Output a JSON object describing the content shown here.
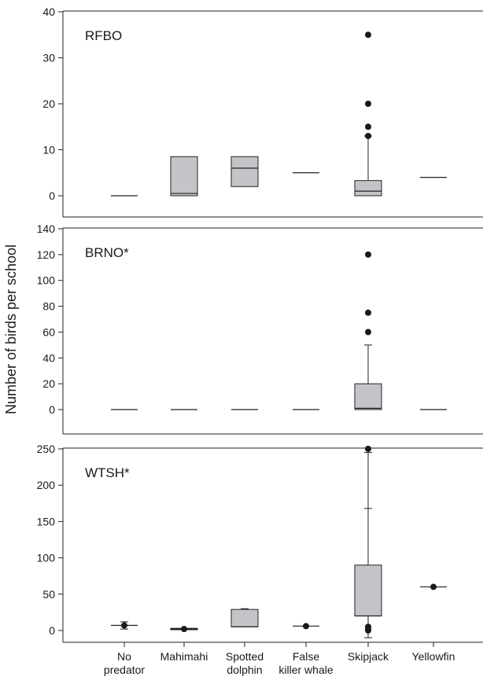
{
  "chart_data": {
    "type": "boxplot",
    "ylabel": "Number of birds per school",
    "categories": [
      "No predator",
      "Mahimahi",
      "Spotted dolphin",
      "False killer whale",
      "Skipjack",
      "Yellowfin"
    ],
    "category_labels": [
      [
        "No",
        "predator"
      ],
      [
        "Mahimahi"
      ],
      [
        "Spotted",
        "dolphin"
      ],
      [
        "False",
        "killer whale"
      ],
      [
        "Skipjack"
      ],
      [
        "Yellowfin"
      ]
    ],
    "box_color": "#c4c4c8",
    "panels": [
      {
        "label": "RFBO",
        "ylim": [
          -5,
          40
        ],
        "yticks": [
          0,
          10,
          20,
          30,
          40
        ],
        "boxes": [
          {
            "category": "No predator",
            "median": 0
          },
          {
            "category": "Mahimahi",
            "q1": 0,
            "median": 0.5,
            "q3": 8.5
          },
          {
            "category": "Spotted dolphin",
            "q1": 2,
            "median": 6,
            "q3": 8.5
          },
          {
            "category": "False killer whale",
            "median": 5
          },
          {
            "category": "Skipjack",
            "q1": 0,
            "median": 1,
            "q3": 3.3,
            "whisker_low": 0,
            "whisker_high": 13,
            "outliers": [
              13,
              15,
              20,
              35
            ]
          },
          {
            "category": "Yellowfin",
            "median": 4
          }
        ]
      },
      {
        "label": "BRNO*",
        "ylim": [
          -15,
          140
        ],
        "yticks": [
          0,
          20,
          40,
          60,
          80,
          100,
          120,
          140
        ],
        "boxes": [
          {
            "category": "No predator",
            "median": 0
          },
          {
            "category": "Mahimahi",
            "median": 0
          },
          {
            "category": "Spotted dolphin",
            "median": 0
          },
          {
            "category": "False killer whale",
            "median": 0
          },
          {
            "category": "Skipjack",
            "q1": 0,
            "median": 1,
            "q3": 20,
            "whisker_low": 0,
            "whisker_high": 50,
            "outliers": [
              60,
              75,
              120
            ]
          },
          {
            "category": "Yellowfin",
            "median": 0
          }
        ]
      },
      {
        "label": "WTSH*",
        "ylim": [
          -15,
          250
        ],
        "yticks": [
          0,
          50,
          100,
          150,
          200,
          250
        ],
        "boxes": [
          {
            "category": "No predator",
            "median": 7,
            "whisker_low": 2,
            "whisker_high": 12,
            "points": [
              7
            ]
          },
          {
            "category": "Mahimahi",
            "q1": 1,
            "median": 2,
            "q3": 3,
            "points": [
              2
            ]
          },
          {
            "category": "Spotted dolphin",
            "q1": 5,
            "median": 5,
            "q3": 29,
            "whisker_low": 5,
            "whisker_high": 30
          },
          {
            "category": "False killer whale",
            "median": 6,
            "points": [
              6
            ]
          },
          {
            "category": "Skipjack",
            "q1": 20,
            "median": 20,
            "q3": 90,
            "whisker_low": -10,
            "whisker_high": 245,
            "caps": [
              168
            ],
            "outliers": [
              0,
              2,
              5,
              250
            ]
          },
          {
            "category": "Yellowfin",
            "median": 60,
            "points": [
              60
            ]
          }
        ]
      }
    ]
  }
}
